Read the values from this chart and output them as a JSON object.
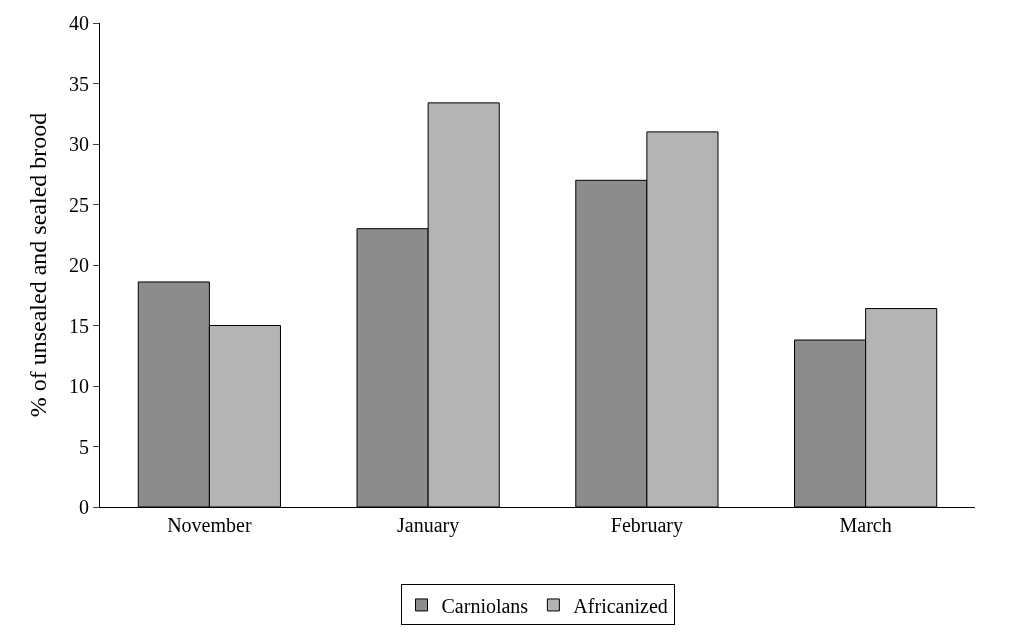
{
  "chart_data": {
    "type": "bar",
    "ylabel": "% of unsealed and sealed brood",
    "categories": [
      "November",
      "January",
      "February",
      "March"
    ],
    "series": [
      {
        "name": "Carniolans",
        "color": "#8c8c8c",
        "values": [
          18.6,
          23.0,
          27.0,
          13.8
        ]
      },
      {
        "name": "Africanized",
        "color": "#b4b4b4",
        "values": [
          15.0,
          33.4,
          31.0,
          16.4
        ]
      }
    ],
    "ylim": [
      0,
      40
    ],
    "yticks": [
      0,
      5,
      10,
      15,
      20,
      25,
      30,
      35,
      40
    ],
    "grid": false,
    "legend": "bottom"
  }
}
